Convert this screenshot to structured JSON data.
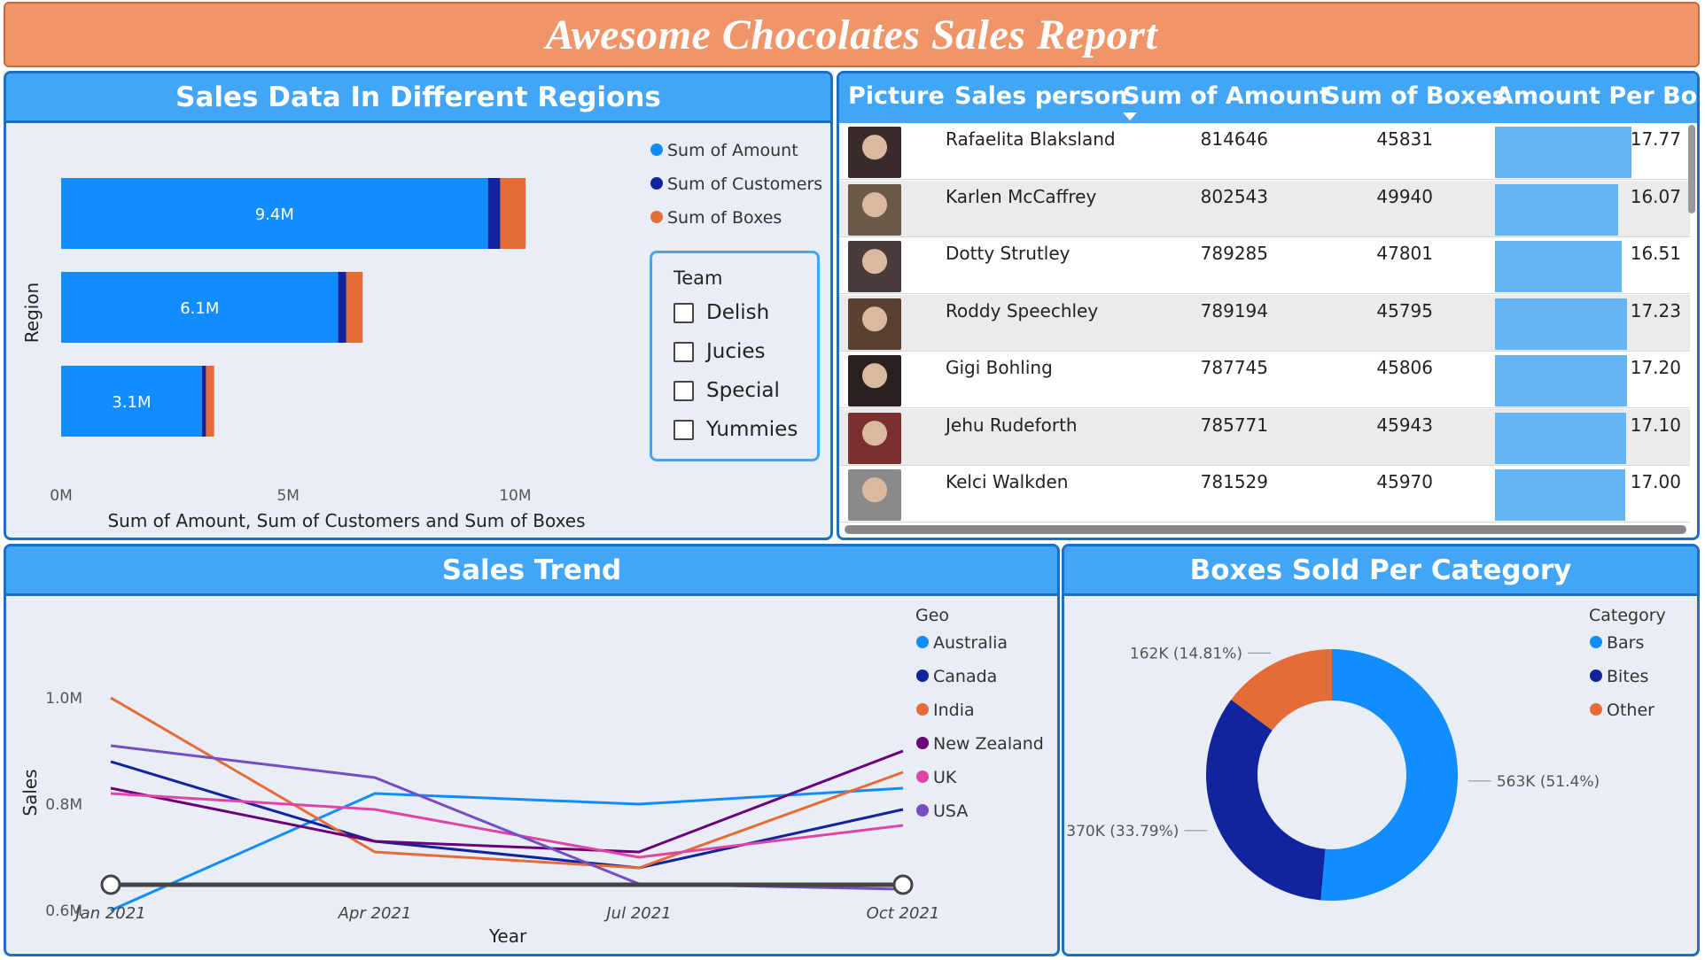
{
  "report_title": "Awesome Chocolates Sales Report",
  "colors": {
    "amount": "#118DFF",
    "customers": "#12239E",
    "boxes": "#E66C37",
    "panel_head": "#42A5F5",
    "panel_border": "#1C6FC7",
    "title_bg": "#F0956A"
  },
  "regions_panel": {
    "title": "Sales Data In Different Regions",
    "legend": [
      "Sum of Amount",
      "Sum of Customers",
      "Sum of Boxes"
    ]
  },
  "slicer": {
    "title": "Team",
    "items": [
      "Delish",
      "Jucies",
      "Special",
      "Yummies"
    ]
  },
  "table": {
    "headers": [
      "Picture",
      "Sales person",
      "Sum of Amount",
      "Sum of Boxes",
      "Amount Per Box"
    ],
    "rows": [
      {
        "name": "Rafaelita Blaksland",
        "amount": "814646",
        "boxes": "45831",
        "per_box": "17.77",
        "per_box_value": 17.77
      },
      {
        "name": "Karlen McCaffrey",
        "amount": "802543",
        "boxes": "49940",
        "per_box": "16.07",
        "per_box_value": 16.07
      },
      {
        "name": "Dotty Strutley",
        "amount": "789285",
        "boxes": "47801",
        "per_box": "16.51",
        "per_box_value": 16.51
      },
      {
        "name": "Roddy Speechley",
        "amount": "789194",
        "boxes": "45795",
        "per_box": "17.23",
        "per_box_value": 17.23
      },
      {
        "name": "Gigi Bohling",
        "amount": "787745",
        "boxes": "45806",
        "per_box": "17.20",
        "per_box_value": 17.2
      },
      {
        "name": "Jehu Rudeforth",
        "amount": "785771",
        "boxes": "45943",
        "per_box": "17.10",
        "per_box_value": 17.1
      },
      {
        "name": "Kelci Walkden",
        "amount": "781529",
        "boxes": "45970",
        "per_box": "17.00",
        "per_box_value": 17.0
      }
    ]
  },
  "trend_panel": {
    "title": "Sales Trend"
  },
  "donut_panel": {
    "title": "Boxes Sold Per Category"
  },
  "chart_data": [
    {
      "type": "bar",
      "orientation": "horizontal",
      "stacked": true,
      "title": "Sales Data In Different Regions",
      "ylabel": "Region",
      "xlabel": "Sum of Amount, Sum of Customers and Sum of Boxes",
      "x_ticks": [
        "0M",
        "5M",
        "10M"
      ],
      "xlim": [
        0,
        10500000
      ],
      "categories": [
        "",
        "",
        ""
      ],
      "series": [
        {
          "name": "Sum of Amount",
          "values": [
            9400000,
            6100000,
            3100000
          ],
          "labels": [
            "9.4M",
            "6.1M",
            "3.1M"
          ]
        },
        {
          "name": "Sum of Customers",
          "values": [
            270000,
            180000,
            90000
          ]
        },
        {
          "name": "Sum of Boxes",
          "values": [
            560000,
            360000,
            180000
          ]
        }
      ],
      "legend": "top-right"
    },
    {
      "type": "line",
      "title": "Sales Trend",
      "xlabel": "Year",
      "ylabel": "Sales",
      "x": [
        "Jan 2021",
        "Apr 2021",
        "Jul 2021",
        "Oct 2021"
      ],
      "y_ticks": [
        "0.6M",
        "0.8M",
        "1.0M"
      ],
      "ylim": [
        0.55,
        1.05
      ],
      "legend_title": "Geo",
      "series": [
        {
          "name": "Australia",
          "color": "#118DFF",
          "values": [
            0.6,
            0.82,
            0.8,
            0.83
          ]
        },
        {
          "name": "Canada",
          "color": "#12239E",
          "values": [
            0.88,
            0.73,
            0.68,
            0.79
          ]
        },
        {
          "name": "India",
          "color": "#E66C37",
          "values": [
            1.0,
            0.71,
            0.68,
            0.86
          ]
        },
        {
          "name": "New Zealand",
          "color": "#6B007B",
          "values": [
            0.83,
            0.73,
            0.71,
            0.9
          ]
        },
        {
          "name": "UK",
          "color": "#E044A7",
          "values": [
            0.82,
            0.79,
            0.7,
            0.76
          ]
        },
        {
          "name": "USA",
          "color": "#744EC2",
          "values": [
            0.91,
            0.85,
            0.65,
            0.64
          ]
        }
      ]
    },
    {
      "type": "pie",
      "donut": true,
      "title": "Boxes Sold Per Category",
      "legend_title": "Category",
      "categories": [
        "Bars",
        "Bites",
        "Other"
      ],
      "values": [
        563,
        370,
        162
      ],
      "colors": [
        "#118DFF",
        "#12239E",
        "#E66C37"
      ],
      "labels": [
        "563K (51.4%)",
        "370K (33.79%)",
        "162K (14.81%)"
      ]
    }
  ]
}
